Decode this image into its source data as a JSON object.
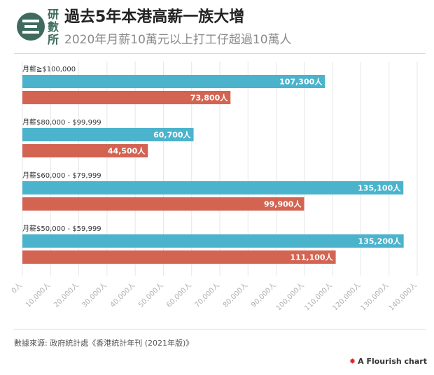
{
  "header": {
    "logo_text": "研數所",
    "title": "過去5年本港高薪一族大增",
    "subtitle": "2020年月薪10萬元以上打工仔超過10萬人"
  },
  "footer": {
    "source": "數據來源: 政府統計處《香港統計年刊 (2021年版)》",
    "credit": "A Flourish chart"
  },
  "colors": {
    "series_a": "#4bb3cc",
    "series_b": "#d36452",
    "grid": "#e6e6e6",
    "tick_text": "#b0b0b0"
  },
  "chart_data": {
    "type": "bar",
    "orientation": "horizontal",
    "categories": [
      "月薪≧$100,000",
      "月薪$80,000 - $99,999",
      "月薪$60,000 - $79,999",
      "月薪$50,000 - $59,999"
    ],
    "series": [
      {
        "values": [
          107300,
          60700,
          135100,
          135200
        ],
        "color": "#4bb3cc"
      },
      {
        "values": [
          73800,
          44500,
          99900,
          111100
        ],
        "color": "#d36452"
      }
    ],
    "value_labels": [
      [
        "107,300人",
        "60,700人",
        "135,100人",
        "135,200人"
      ],
      [
        "73,800人",
        "44,500人",
        "99,900人",
        "111,100人"
      ]
    ],
    "xlim": [
      0,
      140000
    ],
    "xticks": [
      0,
      10000,
      20000,
      30000,
      40000,
      50000,
      60000,
      70000,
      80000,
      90000,
      100000,
      110000,
      120000,
      130000,
      140000
    ],
    "xtick_labels": [
      "0人",
      "10,000人",
      "20,000人",
      "30,000人",
      "40,000人",
      "50,000人",
      "60,000人",
      "70,000人",
      "80,000人",
      "90,000人",
      "100,000人",
      "110,000人",
      "120,000人",
      "130,000人",
      "140,000人"
    ],
    "grid": true,
    "legend": "none"
  }
}
